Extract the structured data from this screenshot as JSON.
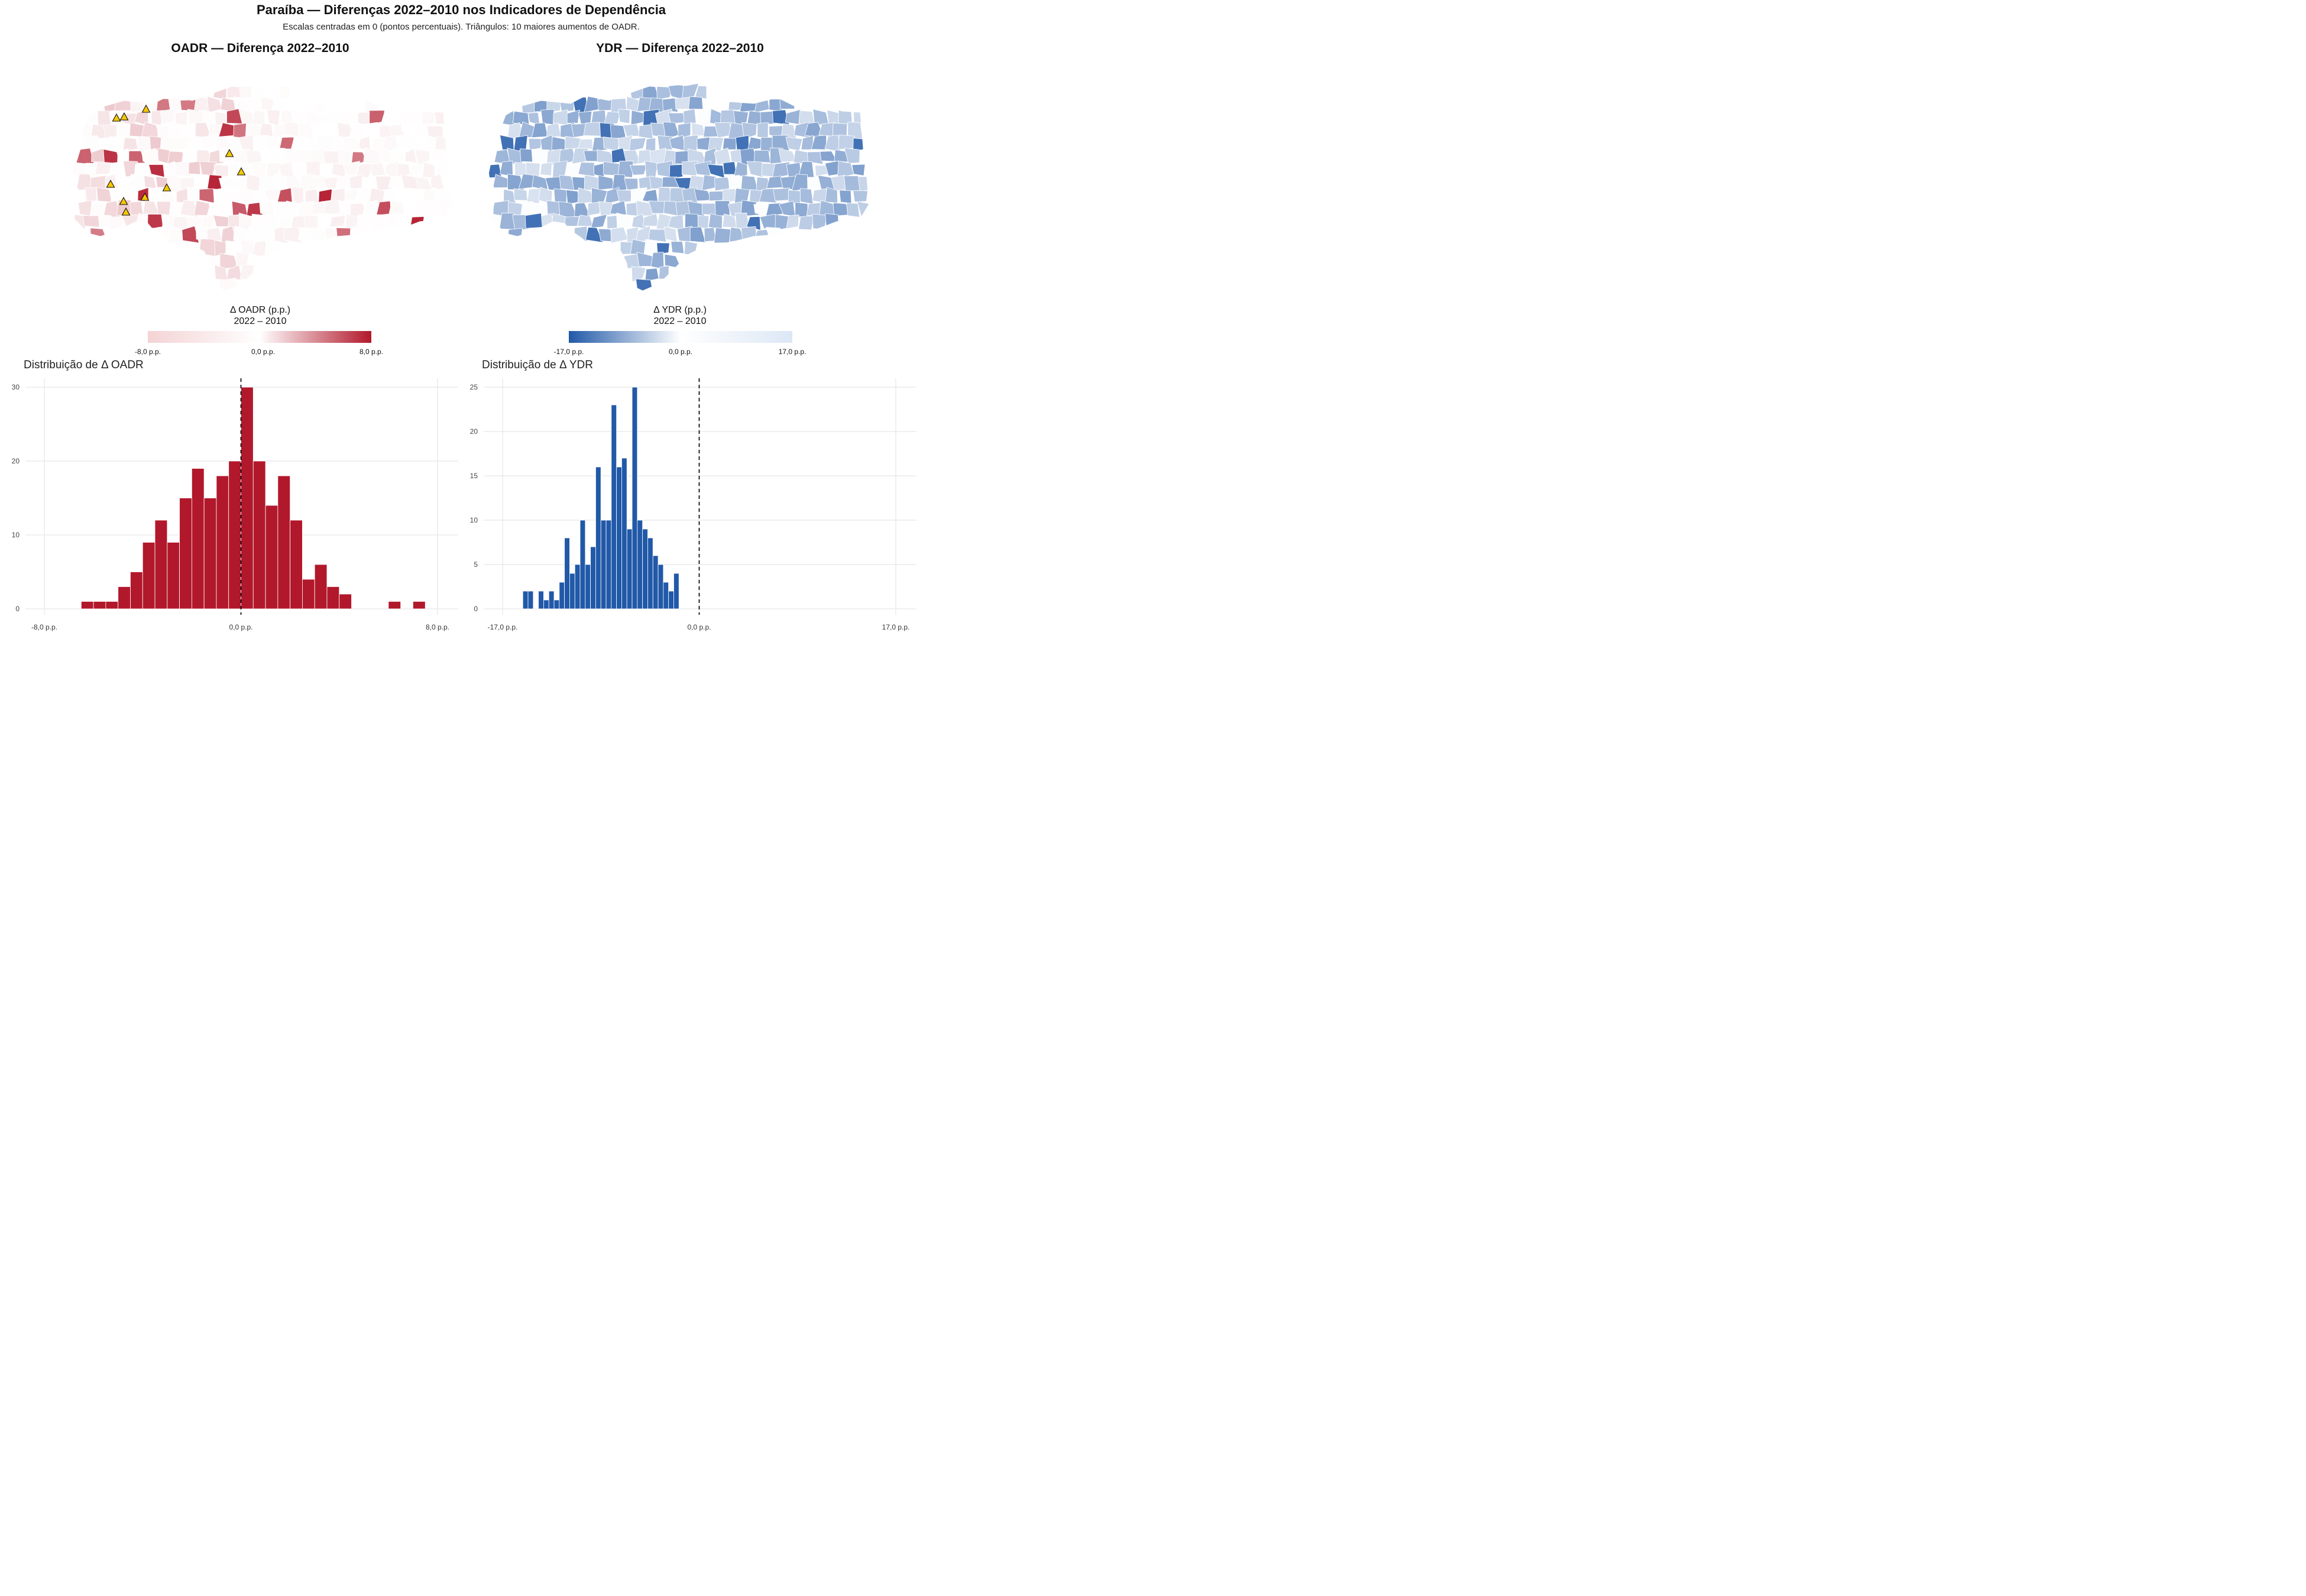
{
  "title": "Paraíba — Diferenças 2022–2010 nos Indicadores de Dependência",
  "subtitle": "Escalas centradas em 0 (pontos percentuais). Triângulos: 10 maiores aumentos de OADR.",
  "maps": {
    "oadr": {
      "title": "OADR — Diferença 2022–2010",
      "legend_title_line1": "Δ OADR (p.p.)",
      "legend_title_line2": "2022 – 2010",
      "legend_ticks": [
        "-8,0 p.p.",
        "0,0 p.p.",
        "8,0 p.p."
      ],
      "legend_range": [
        -8,
        8
      ],
      "colors": {
        "low": "#f4d3d5",
        "mid": "#ffffff",
        "high": "#b2182b"
      },
      "marker_symbol": "triangle",
      "marker_color": "#f5c800",
      "marker_count": 10
    },
    "ydr": {
      "title": "YDR — Diferença 2022–2010",
      "legend_title_line1": "Δ YDR (p.p.)",
      "legend_title_line2": "2022 – 2010",
      "legend_ticks": [
        "-17,0 p.p.",
        "0,0 p.p.",
        "17,0 p.p."
      ],
      "legend_range": [
        -17,
        17
      ],
      "colors": {
        "low": "#2159a8",
        "mid": "#ffffff",
        "high": "#dce7f5"
      }
    }
  },
  "chart_data": [
    {
      "type": "bar",
      "title": "Distribuição de Δ OADR",
      "xlabel": "",
      "ylabel": "",
      "xlim": [
        -8,
        8
      ],
      "ylim": [
        0,
        30
      ],
      "x_ticks": [
        -8,
        0,
        8
      ],
      "x_tick_labels": [
        "-8,0 p.p.",
        "0,0 p.p.",
        "8,0 p.p."
      ],
      "y_ticks": [
        0,
        10,
        20,
        30
      ],
      "bin_width": 0.5,
      "bin_start": -6.5,
      "counts": [
        1,
        1,
        1,
        3,
        5,
        9,
        12,
        9,
        15,
        19,
        15,
        18,
        20,
        30,
        20,
        14,
        18,
        12,
        4,
        6,
        3,
        2,
        0,
        0,
        0,
        1,
        0,
        1
      ],
      "reference_line": 0,
      "color": "#b2182b",
      "grid": true
    },
    {
      "type": "bar",
      "title": "Distribuição de Δ YDR",
      "xlabel": "",
      "ylabel": "",
      "xlim": [
        -17,
        17
      ],
      "ylim": [
        0,
        25
      ],
      "x_ticks": [
        -17,
        0,
        17
      ],
      "x_tick_labels": [
        "-17,0 p.p.",
        "0,0 p.p.",
        "17,0 p.p."
      ],
      "y_ticks": [
        0,
        5,
        10,
        15,
        20,
        25
      ],
      "bin_width": 0.45,
      "bin_start": -15.25,
      "counts": [
        2,
        2,
        0,
        2,
        1,
        2,
        1,
        3,
        8,
        4,
        5,
        10,
        5,
        7,
        16,
        10,
        10,
        23,
        16,
        17,
        9,
        25,
        10,
        9,
        8,
        6,
        5,
        3,
        2,
        4
      ],
      "reference_line": 0,
      "color": "#2159a8",
      "grid": true
    }
  ]
}
